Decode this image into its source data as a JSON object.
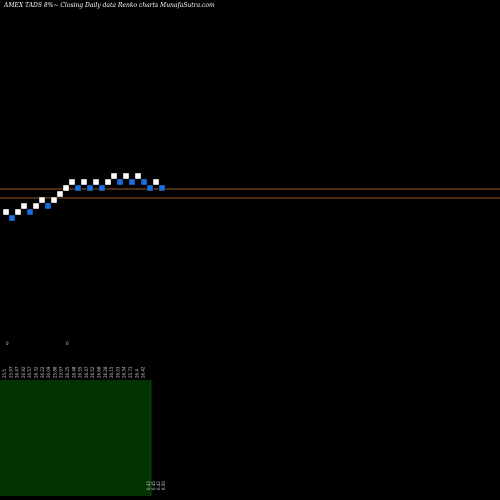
{
  "header": {
    "title": "AMEX  TADS 8%~  Closing Daily data  Renko  charts MunafaSutra.com"
  },
  "colors": {
    "background": "#000000",
    "up_brick": "#ffffff",
    "down_brick": "#1e6fe0",
    "ref_line": "#c8762a",
    "volume_panel": "#003300"
  },
  "chart_data": {
    "type": "renko",
    "title": "AMEX  TADS 8%~  Closing Daily data  Renko  charts MunafaSutra.com",
    "bricks": [
      {
        "level": 0,
        "dir": "up"
      },
      {
        "level": -1,
        "dir": "down"
      },
      {
        "level": 0,
        "dir": "up"
      },
      {
        "level": 1,
        "dir": "up"
      },
      {
        "level": 0,
        "dir": "down"
      },
      {
        "level": 1,
        "dir": "up"
      },
      {
        "level": 2,
        "dir": "up"
      },
      {
        "level": 1,
        "dir": "down"
      },
      {
        "level": 2,
        "dir": "up"
      },
      {
        "level": 3,
        "dir": "up"
      },
      {
        "level": 4,
        "dir": "up"
      },
      {
        "level": 5,
        "dir": "up"
      },
      {
        "level": 4,
        "dir": "down"
      },
      {
        "level": 5,
        "dir": "up"
      },
      {
        "level": 4,
        "dir": "down"
      },
      {
        "level": 5,
        "dir": "up"
      },
      {
        "level": 4,
        "dir": "down"
      },
      {
        "level": 5,
        "dir": "up"
      },
      {
        "level": 6,
        "dir": "up"
      },
      {
        "level": 5,
        "dir": "down"
      },
      {
        "level": 6,
        "dir": "up"
      },
      {
        "level": 5,
        "dir": "down"
      },
      {
        "level": 6,
        "dir": "up"
      },
      {
        "level": 5,
        "dir": "down"
      },
      {
        "level": 4,
        "dir": "down"
      },
      {
        "level": 5,
        "dir": "up"
      },
      {
        "level": 4,
        "dir": "down"
      }
    ],
    "ref_levels": [
      3.5,
      2
    ],
    "x_tick_labels": [
      "25.5",
      "25.97",
      "26.47",
      "26.92",
      "26.57",
      "26.32",
      "26.22",
      "26.09",
      "25.88",
      "25.97",
      "26.25",
      "26.48",
      "26.55",
      "26.47",
      "26.52",
      "26.68",
      "26.28",
      "26.15",
      "26.03",
      "26.34",
      "25.73",
      "26.4",
      "26.42"
    ],
    "x_markers": [
      "0",
      "0"
    ],
    "price_labels": [
      "6.43",
      "6.45",
      "6.42",
      "6.50"
    ]
  }
}
